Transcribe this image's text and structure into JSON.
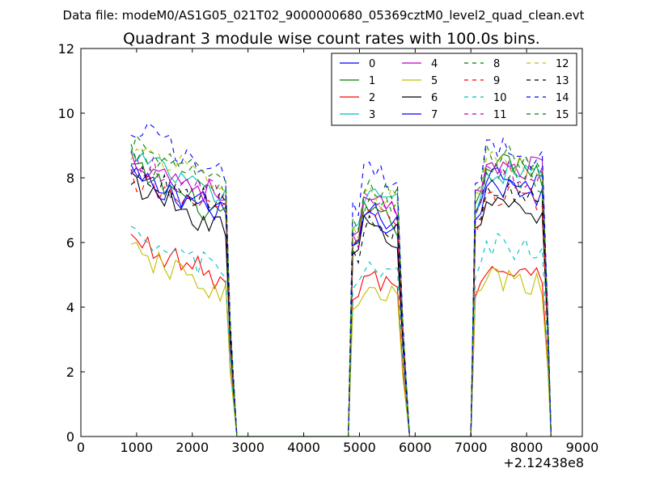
{
  "chart_data": {
    "type": "line",
    "suptitle": "Data file: modeM0/AS1G05_021T02_9000000680_05369cztM0_level2_quad_clean.evt",
    "title": "Quadrant 3 module wise count rates with 100.0s bins.",
    "xlabel": "",
    "ylabel": "",
    "x_offset_label": "+2.12438e8",
    "xlim": [
      0,
      9000
    ],
    "ylim": [
      0,
      12
    ],
    "xticks": [
      0,
      1000,
      2000,
      3000,
      4000,
      5000,
      6000,
      7000,
      8000,
      9000
    ],
    "xtick_labels": [
      "0",
      "1000",
      "2000",
      "3000",
      "4000",
      "5000",
      "6000",
      "7000",
      "8000",
      "9000"
    ],
    "yticks": [
      0,
      2,
      4,
      6,
      8,
      10,
      12
    ],
    "ytick_labels": [
      "0",
      "2",
      "4",
      "6",
      "8",
      "10",
      "12"
    ],
    "legend_position": "top-right",
    "segments": [
      {
        "start": 900,
        "end": 2800,
        "plateau_end": 2600
      },
      {
        "start": 4800,
        "end": 5900,
        "plateau_end": 5700
      },
      {
        "start": 7000,
        "end": 8440,
        "plateau_end": 8300
      }
    ],
    "zero_gaps": [
      [
        2800,
        4800
      ],
      [
        5900,
        7000
      ]
    ],
    "series": [
      {
        "name": "0",
        "color": "#0000ff",
        "dash": "solid",
        "levels": [
          8.0,
          7.0,
          8.2
        ],
        "trend": -1.1
      },
      {
        "name": "1",
        "color": "#008000",
        "dash": "solid",
        "levels": [
          8.3,
          7.0,
          8.6
        ],
        "trend": -1.6
      },
      {
        "name": "2",
        "color": "#ff0000",
        "dash": "solid",
        "levels": [
          6.1,
          5.0,
          5.3
        ],
        "trend": -1.3
      },
      {
        "name": "3",
        "color": "#00bfbf",
        "dash": "solid",
        "levels": [
          8.7,
          7.6,
          8.4
        ],
        "trend": -1.4
      },
      {
        "name": "4",
        "color": "#bf00bf",
        "dash": "solid",
        "levels": [
          8.6,
          7.3,
          8.6
        ],
        "trend": -1.2
      },
      {
        "name": "5",
        "color": "#bfbf00",
        "dash": "solid",
        "levels": [
          5.7,
          4.6,
          5.0
        ],
        "trend": -1.3
      },
      {
        "name": "6",
        "color": "#000000",
        "dash": "solid",
        "levels": [
          7.9,
          6.6,
          7.4
        ],
        "trend": -1.6
      },
      {
        "name": "7",
        "color": "#0000ff",
        "dash": "solid",
        "levels": [
          8.1,
          6.9,
          7.8
        ],
        "trend": -1.2
      },
      {
        "name": "8",
        "color": "#008000",
        "dash": "dashed",
        "levels": [
          8.7,
          7.3,
          8.2
        ],
        "trend": -1.1
      },
      {
        "name": "9",
        "color": "#ff0000",
        "dash": "dashed",
        "levels": [
          7.9,
          6.9,
          7.5
        ],
        "trend": -0.9
      },
      {
        "name": "10",
        "color": "#00bfbf",
        "dash": "dashed",
        "levels": [
          6.1,
          5.3,
          6.0
        ],
        "trend": -1.0
      },
      {
        "name": "11",
        "color": "#bf00bf",
        "dash": "dashed",
        "levels": [
          8.5,
          7.3,
          8.3
        ],
        "trend": -1.1
      },
      {
        "name": "12",
        "color": "#bfbf00",
        "dash": "dashed",
        "levels": [
          8.9,
          7.6,
          8.5
        ],
        "trend": -1.0
      },
      {
        "name": "13",
        "color": "#000000",
        "dash": "dashed",
        "levels": [
          8.1,
          6.7,
          7.6
        ],
        "trend": -1.0
      },
      {
        "name": "14",
        "color": "#0000ff",
        "dash": "dashed",
        "levels": [
          9.6,
          8.4,
          9.0
        ],
        "trend": -1.5
      },
      {
        "name": "15",
        "color": "#008000",
        "dash": "dashed",
        "levels": [
          9.0,
          7.8,
          8.8
        ],
        "trend": -1.2
      }
    ]
  }
}
